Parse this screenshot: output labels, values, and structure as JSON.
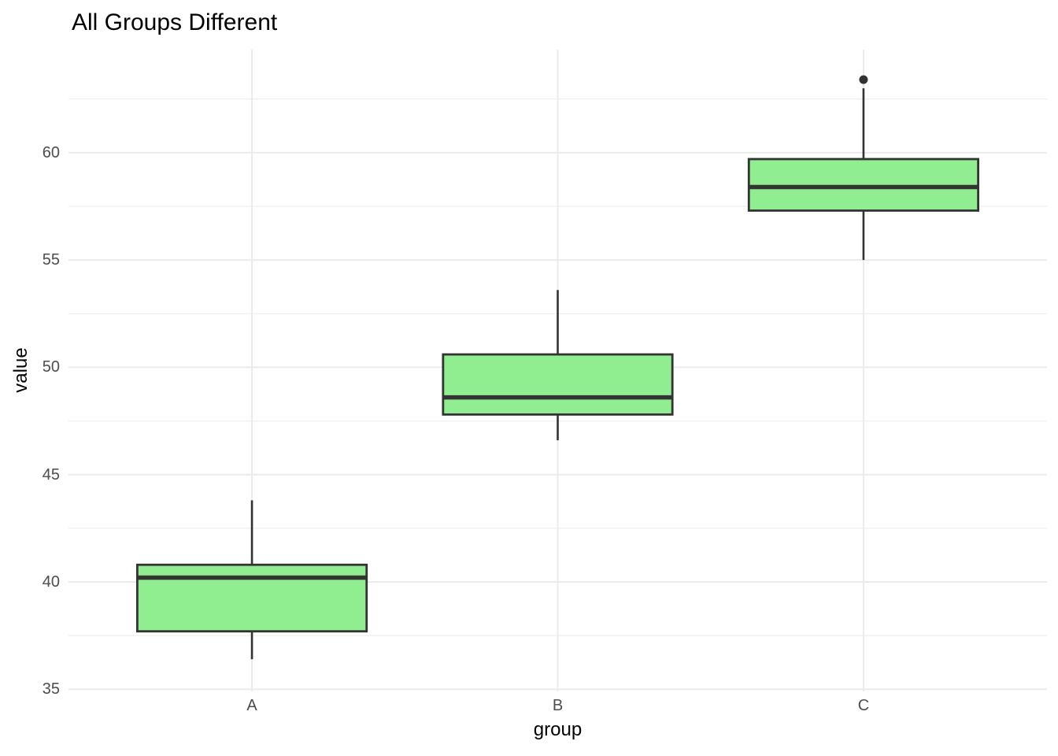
{
  "chart": {
    "title": "All Groups Different",
    "xlabel": "group",
    "ylabel": "value"
  },
  "chart_data": {
    "type": "boxplot",
    "title": "All Groups Different",
    "xlabel": "group",
    "ylabel": "value",
    "categories": [
      "A",
      "B",
      "C"
    ],
    "series": [
      {
        "name": "A",
        "whisker_low": 36.4,
        "q1": 37.7,
        "median": 40.2,
        "q3": 40.8,
        "whisker_high": 43.8,
        "outliers": []
      },
      {
        "name": "B",
        "whisker_low": 46.6,
        "q1": 47.8,
        "median": 48.6,
        "q3": 50.6,
        "whisker_high": 53.6,
        "outliers": []
      },
      {
        "name": "C",
        "whisker_low": 55.0,
        "q1": 57.3,
        "median": 58.4,
        "q3": 59.7,
        "whisker_high": 63.0,
        "outliers": [
          63.4
        ]
      }
    ],
    "y_ticks": [
      35,
      40,
      45,
      50,
      55,
      60
    ],
    "y_minor_ticks": [
      37.5,
      42.5,
      47.5,
      52.5,
      57.5,
      62.5
    ],
    "ylim": [
      34.9,
      64.8
    ],
    "grid": "on",
    "legend": "none",
    "colors": {
      "box_fill": "#90EE90",
      "box_stroke": "#333333",
      "grid_major": "#EBEBEB",
      "grid_minor": "#F0F0F0",
      "tick_label": "#4D4D4D",
      "text": "#000000",
      "background": "#FFFFFF"
    }
  }
}
